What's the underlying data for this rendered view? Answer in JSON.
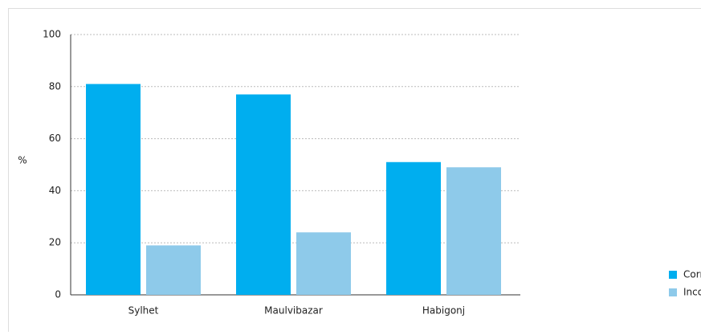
{
  "chart_data": {
    "type": "bar",
    "y_label": "%",
    "categories": [
      "Sylhet",
      "Maulvibazar",
      "Habigonj"
    ],
    "series": [
      {
        "name": "Correct knowledge",
        "color": "#00aeef",
        "values": [
          81,
          77,
          51
        ]
      },
      {
        "name": "Incorrect knowledge",
        "color": "#8ecaea",
        "values": [
          19,
          24,
          49
        ]
      }
    ],
    "ylim": [
      0,
      100
    ],
    "yticks": [
      0,
      20,
      40,
      60,
      80,
      100
    ],
    "grid": true,
    "legend": "lower right"
  }
}
